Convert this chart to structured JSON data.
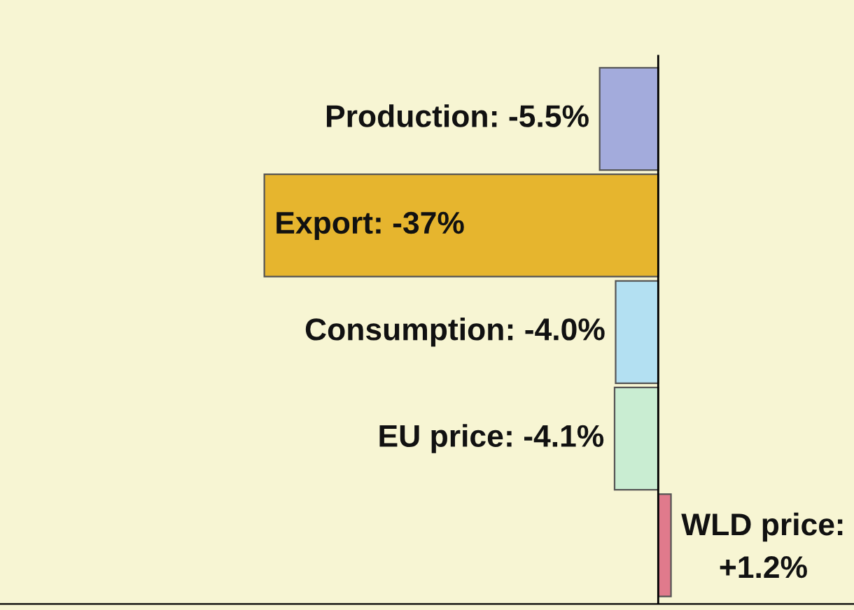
{
  "chart_data": {
    "type": "bar",
    "orientation": "horizontal",
    "categories": [
      "Production",
      "Export",
      "Consumption",
      "EU price",
      "WLD price"
    ],
    "values": [
      -5.5,
      -37,
      -4.0,
      -4.1,
      1.2
    ],
    "colors": [
      "#a3abdc",
      "#e6b52e",
      "#b3e0f2",
      "#c9edd2",
      "#e07a8c"
    ],
    "value_labels": [
      ": -5.5%",
      ": -37%",
      ": -4.0%",
      ": -4.1%",
      ":\n+1.2%"
    ],
    "tick_labels": false
  }
}
